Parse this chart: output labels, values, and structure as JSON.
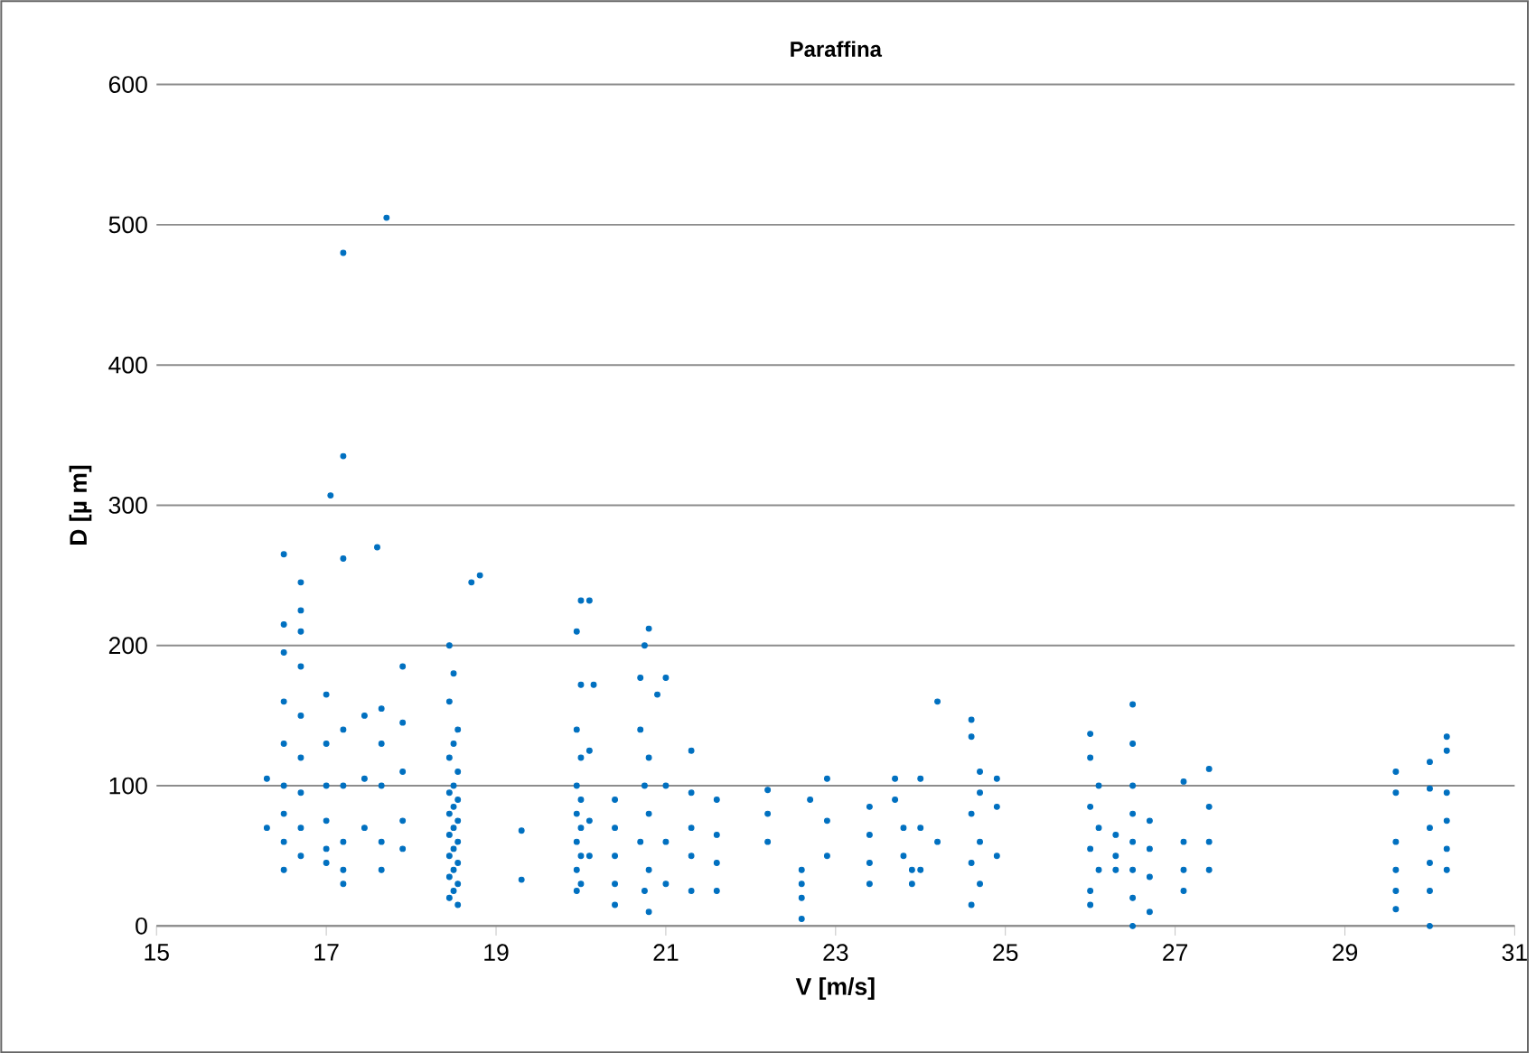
{
  "chart_data": {
    "type": "scatter",
    "title": "Paraffina",
    "xlabel": "V [m/s]",
    "ylabel": "D [µ m]",
    "xlim": [
      15,
      31
    ],
    "xticks": [
      15,
      17,
      19,
      21,
      23,
      25,
      27,
      29,
      31
    ],
    "ylim": [
      0,
      600
    ],
    "yticks": [
      0,
      100,
      200,
      300,
      400,
      500,
      600
    ],
    "grid": "y",
    "marker": "circle",
    "series": [
      {
        "color": "#0070c0",
        "x": [
          16.3,
          16.3,
          16.5,
          16.5,
          16.5,
          16.5,
          16.5,
          16.5,
          16.5,
          16.5,
          16.5,
          16.7,
          16.7,
          16.7,
          16.7,
          16.7,
          16.7,
          16.7,
          16.7,
          16.7,
          17.0,
          17.0,
          17.0,
          17.0,
          17.0,
          17.0,
          17.05,
          17.2,
          17.2,
          17.2,
          17.2,
          17.2,
          17.2,
          17.2,
          17.2,
          17.45,
          17.45,
          17.45,
          17.6,
          17.71,
          17.65,
          17.65,
          17.65,
          17.65,
          17.65,
          17.9,
          17.9,
          17.9,
          17.9,
          17.9,
          18.45,
          18.5,
          18.45,
          18.55,
          18.5,
          18.45,
          18.55,
          18.5,
          18.45,
          18.55,
          18.5,
          18.45,
          18.55,
          18.5,
          18.45,
          18.55,
          18.5,
          18.45,
          18.55,
          18.5,
          18.45,
          18.55,
          18.5,
          18.45,
          18.55,
          18.71,
          18.81,
          19.3,
          19.3,
          19.95,
          20.0,
          19.95,
          20.0,
          19.95,
          20.0,
          19.95,
          20.0,
          19.95,
          20.0,
          19.95,
          20.0,
          19.95,
          20.0,
          20.1,
          20.15,
          20.1,
          20.1,
          20.1,
          20.4,
          20.4,
          20.4,
          20.4,
          20.4,
          20.8,
          20.75,
          20.9,
          20.7,
          20.8,
          20.75,
          20.8,
          20.7,
          20.8,
          20.75,
          20.8,
          20.7,
          21.0,
          21.0,
          21.0,
          21.0,
          21.3,
          21.3,
          21.3,
          21.3,
          21.3,
          21.6,
          21.6,
          21.6,
          21.6,
          22.2,
          22.2,
          22.2,
          22.6,
          22.6,
          22.6,
          22.6,
          22.7,
          22.9,
          22.9,
          22.9,
          23.4,
          23.4,
          23.4,
          23.4,
          23.7,
          23.7,
          23.8,
          23.8,
          23.9,
          23.9,
          24.0,
          24.0,
          24.0,
          24.2,
          24.2,
          24.6,
          24.6,
          24.7,
          24.7,
          24.6,
          24.7,
          24.6,
          24.7,
          24.6,
          24.9,
          24.9,
          24.9,
          26.0,
          26.0,
          26.1,
          26.0,
          26.1,
          26.0,
          26.1,
          26.0,
          26.0,
          26.3,
          26.3,
          26.3,
          26.5,
          26.5,
          26.5,
          26.5,
          26.5,
          26.5,
          26.5,
          26.5,
          26.7,
          26.7,
          26.7,
          26.7,
          27.1,
          27.1,
          27.1,
          27.1,
          27.4,
          27.4,
          27.4,
          27.4,
          29.6,
          29.6,
          29.6,
          29.6,
          29.6,
          29.6,
          30.0,
          30.0,
          30.0,
          30.0,
          30.0,
          30.0,
          30.2,
          30.2,
          30.2,
          30.2,
          30.2,
          30.2
        ],
        "values": [
          105,
          70,
          265,
          215,
          195,
          160,
          130,
          100,
          80,
          60,
          40,
          245,
          225,
          210,
          185,
          150,
          120,
          95,
          70,
          50,
          165,
          130,
          100,
          75,
          55,
          45,
          307,
          480,
          335,
          262,
          140,
          100,
          60,
          40,
          30,
          150,
          105,
          70,
          270,
          505,
          155,
          130,
          100,
          60,
          40,
          185,
          145,
          110,
          75,
          55,
          200,
          180,
          160,
          140,
          130,
          120,
          110,
          100,
          95,
          90,
          85,
          80,
          75,
          70,
          65,
          60,
          55,
          50,
          45,
          40,
          35,
          30,
          25,
          20,
          15,
          245,
          250,
          68,
          33,
          210,
          172,
          140,
          120,
          100,
          90,
          80,
          70,
          60,
          50,
          40,
          30,
          25,
          232,
          232,
          172,
          125,
          75,
          50,
          90,
          70,
          50,
          30,
          15,
          212,
          200,
          165,
          140,
          120,
          100,
          80,
          60,
          40,
          25,
          10,
          177,
          177,
          100,
          60,
          30,
          125,
          95,
          70,
          50,
          25,
          90,
          65,
          45,
          25,
          97,
          80,
          60,
          40,
          30,
          20,
          5,
          90,
          105,
          75,
          50,
          85,
          65,
          45,
          30,
          105,
          90,
          70,
          50,
          40,
          30,
          105,
          70,
          40,
          160,
          60,
          147,
          135,
          110,
          95,
          80,
          60,
          45,
          30,
          15,
          105,
          85,
          50,
          137,
          120,
          100,
          85,
          70,
          55,
          40,
          25,
          15,
          50,
          40,
          65,
          158,
          130,
          100,
          80,
          60,
          40,
          20,
          0,
          75,
          55,
          35,
          10,
          103,
          60,
          40,
          25,
          112,
          85,
          60,
          40,
          110,
          95,
          60,
          40,
          25,
          12,
          117,
          98,
          70,
          45,
          25,
          0,
          135,
          125,
          95,
          75,
          55,
          40
        ]
      }
    ]
  }
}
